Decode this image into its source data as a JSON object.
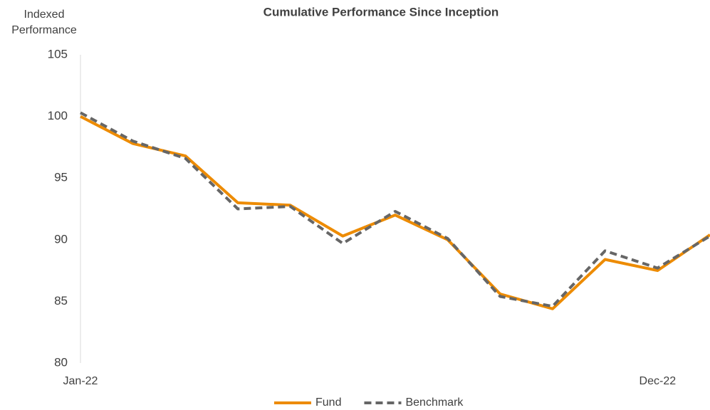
{
  "chart_data": {
    "type": "line",
    "title": "Cumulative Performance Since Inception",
    "y_label": "Indexed Performance",
    "categories": [
      "Jan-22",
      null,
      null,
      null,
      null,
      null,
      null,
      null,
      null,
      null,
      null,
      "Dec-22",
      null
    ],
    "series": [
      {
        "name": "Fund",
        "color": "#ED8B00",
        "dash": false,
        "values": [
          100.0,
          97.8,
          96.8,
          93.0,
          92.8,
          90.3,
          92.0,
          90.0,
          85.6,
          84.4,
          88.4,
          87.5,
          90.4
        ]
      },
      {
        "name": "Benchmark",
        "color": "#666666",
        "dash": true,
        "values": [
          100.3,
          98.0,
          96.6,
          92.5,
          92.7,
          89.7,
          92.3,
          90.1,
          85.4,
          84.6,
          89.1,
          87.7,
          90.3
        ]
      }
    ],
    "ylim": [
      80,
      105
    ],
    "yticks": [
      80,
      85,
      90,
      95,
      100,
      105
    ],
    "grid": false,
    "legend": "bottom"
  }
}
